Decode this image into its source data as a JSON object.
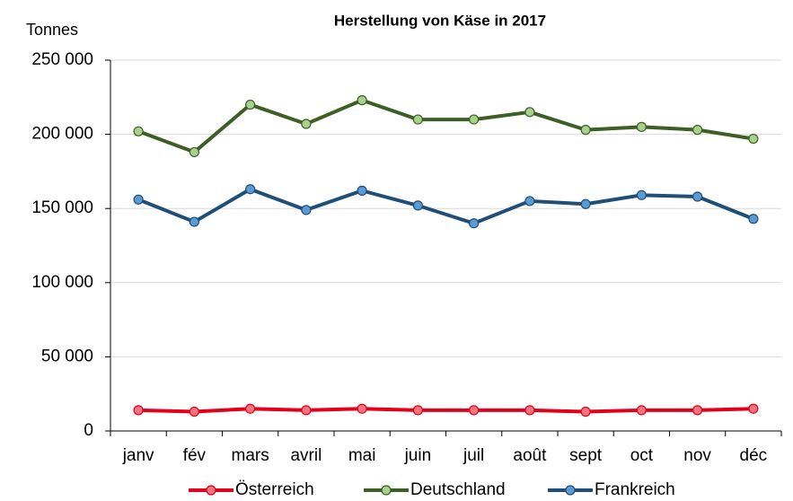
{
  "chart_data": {
    "type": "line",
    "title": "Herstellung von Käse in 2017",
    "y_axis_label": "Tonnes",
    "categories": [
      "janv",
      "fév",
      "mars",
      "avril",
      "mai",
      "juin",
      "juil",
      "août",
      "sept",
      "oct",
      "nov",
      "déc"
    ],
    "series": [
      {
        "name": "Österreich",
        "color": "#e2001a",
        "marker_color": "#f4747f",
        "values": [
          14000,
          13000,
          15000,
          14000,
          15000,
          14000,
          14000,
          14000,
          13000,
          14000,
          14000,
          15000
        ]
      },
      {
        "name": "Deutschland",
        "color": "#3d5e24",
        "marker_color": "#a9d18e",
        "values": [
          202000,
          188000,
          220000,
          207000,
          223000,
          210000,
          210000,
          215000,
          203000,
          205000,
          203000,
          197000
        ]
      },
      {
        "name": "Frankreich",
        "color": "#1f4e79",
        "marker_color": "#5b9bd5",
        "values": [
          156000,
          141000,
          163000,
          149000,
          162000,
          152000,
          140000,
          155000,
          153000,
          159000,
          158000,
          143000
        ]
      }
    ],
    "ylim": [
      0,
      250000
    ],
    "yticks": [
      0,
      {
        "value": 50000,
        "label": "50 000"
      },
      {
        "value": 100000,
        "label": "100 000"
      },
      {
        "value": 150000,
        "label": "150 000"
      },
      {
        "value": 200000,
        "label": "200 000"
      },
      {
        "value": 250000,
        "label": "250 000"
      }
    ],
    "grid": true,
    "legend": "bottom"
  }
}
